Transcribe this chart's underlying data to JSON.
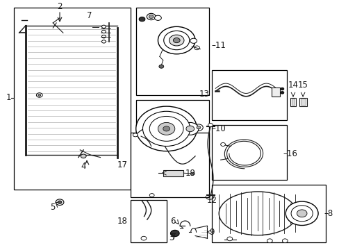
{
  "bg_color": "#ffffff",
  "line_color": "#1a1a1a",
  "figsize": [
    4.89,
    3.6
  ],
  "dpi": 100,
  "boxes": {
    "main": [
      0.04,
      0.05,
      0.385,
      0.76
    ],
    "b11": [
      0.4,
      0.02,
      0.615,
      0.38
    ],
    "b10": [
      0.4,
      0.4,
      0.615,
      0.66
    ],
    "b13": [
      0.625,
      0.3,
      0.845,
      0.5
    ],
    "b16": [
      0.625,
      0.51,
      0.845,
      0.72
    ],
    "b8": [
      0.625,
      0.73,
      0.96,
      0.97
    ],
    "b17": [
      0.385,
      0.55,
      0.615,
      0.79
    ],
    "b18": [
      0.385,
      0.8,
      0.49,
      0.97
    ]
  }
}
